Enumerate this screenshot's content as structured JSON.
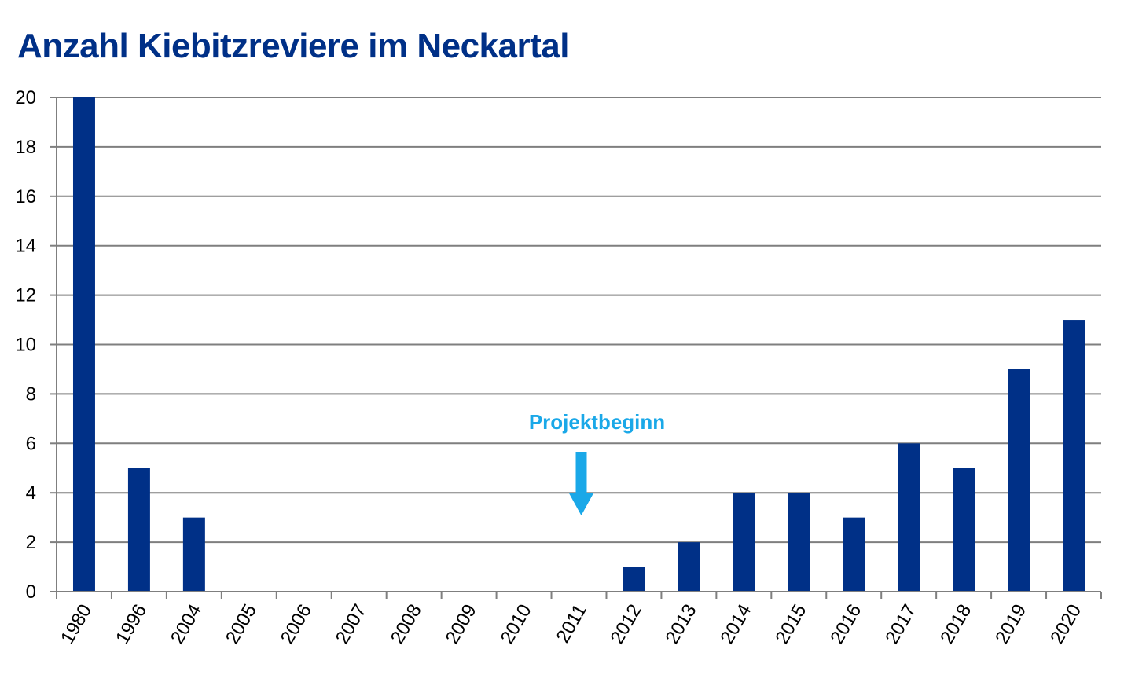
{
  "chart_data": {
    "type": "bar",
    "title": "Anzahl Kiebitzreviere im Neckartal",
    "xlabel": "",
    "ylabel": "",
    "categories": [
      "1980",
      "1996",
      "2004",
      "2005",
      "2006",
      "2007",
      "2008",
      "2009",
      "2010",
      "2011",
      "2012",
      "2013",
      "2014",
      "2015",
      "2016",
      "2017",
      "2018",
      "2019",
      "2020"
    ],
    "values": [
      20,
      5,
      3,
      0,
      0,
      0,
      0,
      0,
      0,
      0,
      1,
      2,
      4,
      4,
      3,
      6,
      5,
      9,
      11
    ],
    "ylim": [
      0,
      20
    ],
    "yticks": [
      "0",
      "2",
      "4",
      "6",
      "8",
      "10",
      "12",
      "14",
      "16",
      "18",
      "20"
    ],
    "grid": true,
    "legend": "none",
    "bar_color": "#003087",
    "annotation": {
      "text": "Projektbeginn",
      "category": "2011",
      "arrow": "down",
      "color": "#1aa8e8"
    }
  }
}
